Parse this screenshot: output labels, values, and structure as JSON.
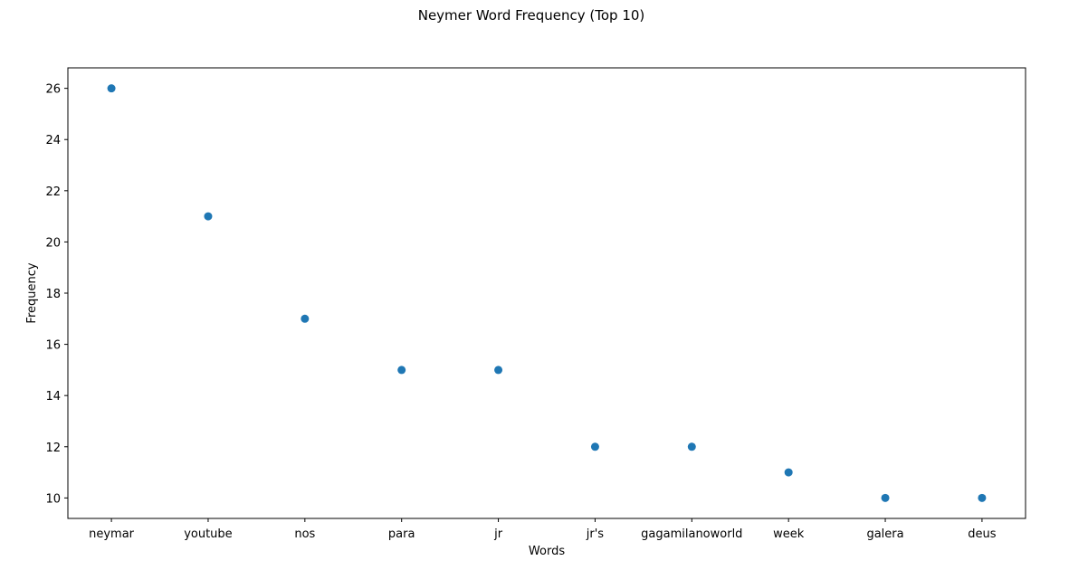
{
  "chart_data": {
    "type": "scatter",
    "title": "Neymer Word Frequency (Top 10)",
    "xlabel": "Words",
    "ylabel": "Frequency",
    "categories": [
      "neymar",
      "youtube",
      "nos",
      "para",
      "jr",
      "jr's",
      "gagamilanoworld",
      "week",
      "galera",
      "deus"
    ],
    "values": [
      26,
      21,
      17,
      15,
      15,
      12,
      12,
      11,
      10,
      10
    ],
    "ylim": [
      9.2,
      26.8
    ],
    "yticks": [
      10,
      12,
      14,
      16,
      18,
      20,
      22,
      24,
      26
    ],
    "grid": false,
    "marker_color": "#1f77b4"
  }
}
